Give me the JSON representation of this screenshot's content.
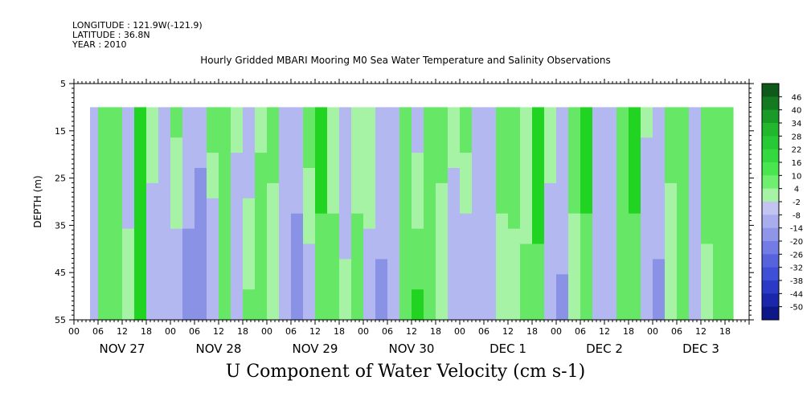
{
  "meta": {
    "longitude": "LONGITUDE : 121.9W(-121.9)",
    "latitude": "LATITUDE : 36.8N",
    "year": "YEAR : 2010"
  },
  "title": "Hourly Gridded MBARI Mooring M0 Sea Water Temperature and Salinity Observations",
  "caption": "U Component of Water Velocity (cm s-1)",
  "chart_data": {
    "type": "heatmap",
    "title": "Hourly Gridded MBARI Mooring M0 Sea Water Temperature and Salinity Observations",
    "xlabel": "",
    "ylabel": "DEPTH (m)",
    "colorbar_label": "U Component of Water Velocity (cm s-1)",
    "x_hour_ticks": [
      "00",
      "06",
      "12",
      "18",
      "00",
      "06",
      "12",
      "18",
      "00",
      "06",
      "12",
      "18",
      "00",
      "06",
      "12",
      "18",
      "00",
      "06",
      "12",
      "18",
      "00",
      "06",
      "12",
      "18",
      "00",
      "06",
      "12",
      "18"
    ],
    "x_day_labels": [
      "NOV 27",
      "NOV 28",
      "NOV 29",
      "NOV 30",
      "DEC  1",
      "DEC  2",
      "DEC  3"
    ],
    "x_range_hours": [
      0,
      168
    ],
    "data_start_hour": 4,
    "data_end_hour": 164,
    "y_ticks": [
      5,
      15,
      25,
      35,
      45,
      55
    ],
    "ylim": [
      5,
      55
    ],
    "y_inverted": true,
    "depth_data_top": 10,
    "colorbar_labels": [
      "46",
      "40",
      "34",
      "28",
      "22",
      "16",
      "10",
      "4",
      "-2",
      "-8",
      "-14",
      "-20",
      "-26",
      "-32",
      "-38",
      "-44",
      "-50"
    ],
    "colorbar_range": [
      -50,
      52
    ],
    "colors": {
      "neg_light": "#b4b8f0",
      "neg_mid": "#8a92e6",
      "neg_dark": "#3f4fd6",
      "pos_light": "#a6f3a6",
      "pos_mid": "#66e866",
      "pos_dark": "#21d421"
    },
    "column_profiles": [
      {
        "hour": 4,
        "top": -1,
        "bottom": -2
      },
      {
        "hour": 6,
        "top": 8,
        "bottom": 10
      },
      {
        "hour": 9,
        "top": 14,
        "bottom": 12
      },
      {
        "hour": 12,
        "top": -4,
        "bottom": 6
      },
      {
        "hour": 15,
        "top": 16,
        "bottom": 14
      },
      {
        "hour": 18,
        "top": 6,
        "bottom": -6
      },
      {
        "hour": 21,
        "top": -5,
        "bottom": -12
      },
      {
        "hour": 24,
        "top": 10,
        "bottom": -4
      },
      {
        "hour": 27,
        "top": -3,
        "bottom": -18
      },
      {
        "hour": 30,
        "top": -8,
        "bottom": -22
      },
      {
        "hour": 33,
        "top": 12,
        "bottom": -10
      },
      {
        "hour": 36,
        "top": 14,
        "bottom": 8
      },
      {
        "hour": 39,
        "top": 4,
        "bottom": -6
      },
      {
        "hour": 42,
        "top": -4,
        "bottom": 10
      },
      {
        "hour": 45,
        "top": 6,
        "bottom": 14
      },
      {
        "hour": 48,
        "top": 10,
        "bottom": 4
      },
      {
        "hour": 51,
        "top": -2,
        "bottom": -8
      },
      {
        "hour": 54,
        "top": -8,
        "bottom": -16
      },
      {
        "hour": 57,
        "top": 12,
        "bottom": -4
      },
      {
        "hour": 60,
        "top": 16,
        "bottom": 12
      },
      {
        "hour": 63,
        "top": 6,
        "bottom": 10
      },
      {
        "hour": 66,
        "top": -4,
        "bottom": 4
      },
      {
        "hour": 69,
        "top": 4,
        "bottom": 12
      },
      {
        "hour": 72,
        "top": 8,
        "bottom": -2
      },
      {
        "hour": 75,
        "top": -3,
        "bottom": -16
      },
      {
        "hour": 78,
        "top": 2,
        "bottom": -6
      },
      {
        "hour": 81,
        "top": 10,
        "bottom": 14
      },
      {
        "hour": 84,
        "top": -2,
        "bottom": 16
      },
      {
        "hour": 87,
        "top": 14,
        "bottom": 10
      },
      {
        "hour": 90,
        "top": 10,
        "bottom": 4
      },
      {
        "hour": 93,
        "top": 4,
        "bottom": -4
      },
      {
        "hour": 96,
        "top": 12,
        "bottom": -8
      },
      {
        "hour": 99,
        "top": -4,
        "bottom": -10
      },
      {
        "hour": 102,
        "top": -6,
        "bottom": -8
      },
      {
        "hour": 105,
        "top": 10,
        "bottom": 6
      },
      {
        "hour": 108,
        "top": 14,
        "bottom": 4
      },
      {
        "hour": 111,
        "top": 4,
        "bottom": 10
      },
      {
        "hour": 114,
        "top": 18,
        "bottom": 12
      },
      {
        "hour": 117,
        "top": 6,
        "bottom": -6
      },
      {
        "hour": 120,
        "top": -4,
        "bottom": -14
      },
      {
        "hour": 123,
        "top": 12,
        "bottom": 4
      },
      {
        "hour": 126,
        "top": 16,
        "bottom": 12
      },
      {
        "hour": 129,
        "top": -6,
        "bottom": -4
      },
      {
        "hour": 132,
        "top": -4,
        "bottom": -12
      },
      {
        "hour": 135,
        "top": 12,
        "bottom": 10
      },
      {
        "hour": 138,
        "top": 16,
        "bottom": 12
      },
      {
        "hour": 141,
        "top": 4,
        "bottom": -8
      },
      {
        "hour": 144,
        "top": -2,
        "bottom": -16
      },
      {
        "hour": 147,
        "top": 10,
        "bottom": 4
      },
      {
        "hour": 150,
        "top": 14,
        "bottom": 10
      },
      {
        "hour": 153,
        "top": -6,
        "bottom": 2
      },
      {
        "hour": 156,
        "top": 12,
        "bottom": 6
      },
      {
        "hour": 159,
        "top": 8,
        "bottom": 10
      },
      {
        "hour": 162,
        "top": 14,
        "bottom": 8
      },
      {
        "hour": 164,
        "top": -2,
        "bottom": -6
      }
    ]
  }
}
